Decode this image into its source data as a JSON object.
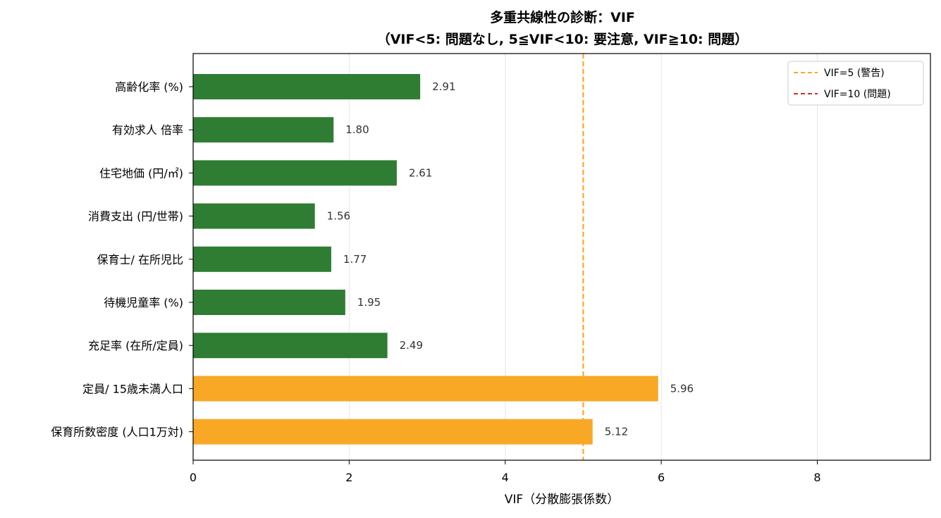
{
  "chart_data": {
    "type": "bar",
    "orientation": "horizontal",
    "title": "多重共線性の診断：VIF",
    "subtitle": "（VIF<5: 問題なし, 5≦VIF<10: 要注意, VIF≧10: 問題）",
    "xlabel": "VIF（分散膨張係数）",
    "ylabel": "",
    "xlim": [
      0,
      9.45
    ],
    "xticks": [
      "0",
      "2",
      "4",
      "6",
      "8"
    ],
    "grid": "x",
    "legend_position": "top-right",
    "categories": [
      "高齢化率 (%)",
      "有効求人 倍率",
      "住宅地価 (円/㎡)",
      "消費支出 (円/世帯)",
      "保育士/ 在所児比",
      "待機児童率 (%)",
      "充足率 (在所/定員)",
      "定員/ 15歳未満人口",
      "保育所数密度 (人口1万対)"
    ],
    "values": [
      2.91,
      1.8,
      2.61,
      1.56,
      1.77,
      1.95,
      2.49,
      5.96,
      5.12
    ],
    "value_labels": [
      "2.91",
      "1.80",
      "2.61",
      "1.56",
      "1.77",
      "1.95",
      "2.49",
      "5.96",
      "5.12"
    ],
    "bar_colors": [
      "#2e7d32",
      "#2e7d32",
      "#2e7d32",
      "#2e7d32",
      "#2e7d32",
      "#2e7d32",
      "#2e7d32",
      "#f9a825",
      "#f9a825"
    ],
    "reference_lines": [
      {
        "name": "VIF=5 (警告)",
        "value": 5,
        "color": "#f9a825"
      },
      {
        "name": "VIF=10 (問題)",
        "value": 10,
        "color": "#d32f2f"
      }
    ]
  }
}
